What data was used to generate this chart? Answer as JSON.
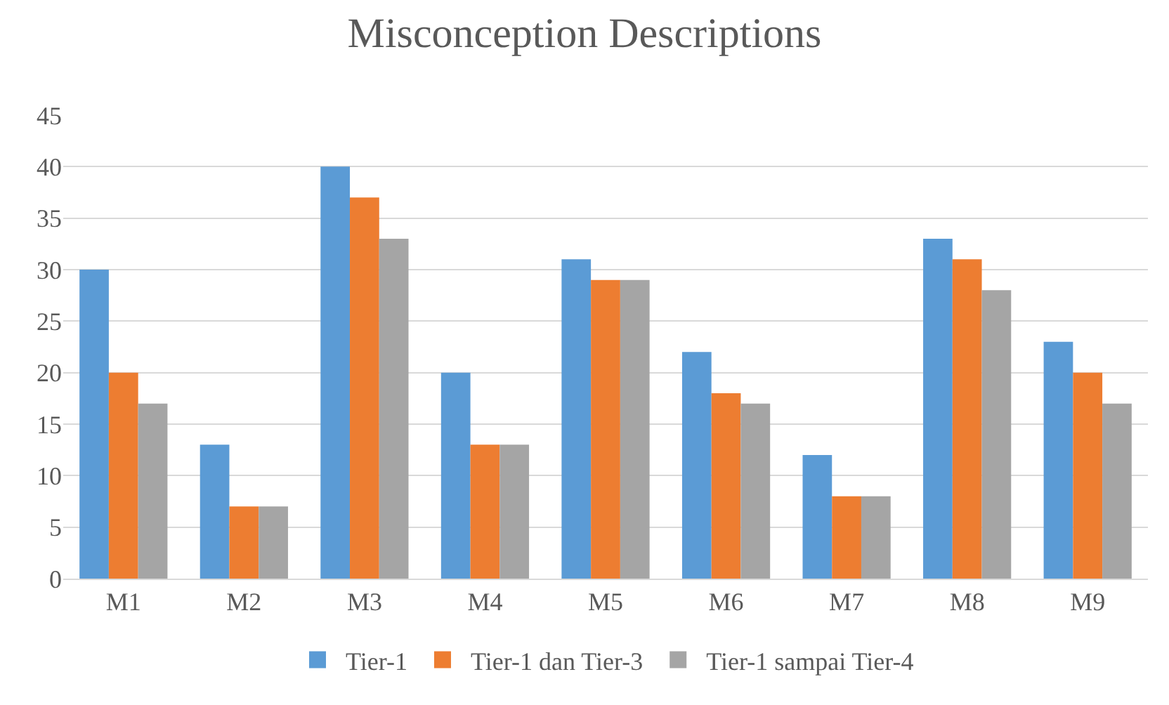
{
  "chart_data": {
    "type": "bar",
    "title": "Misconception Descriptions",
    "categories": [
      "M1",
      "M2",
      "M3",
      "M4",
      "M5",
      "M6",
      "M7",
      "M8",
      "M9"
    ],
    "series": [
      {
        "name": "Tier-1",
        "color": "#5b9bd5",
        "values": [
          30,
          13,
          40,
          20,
          31,
          22,
          12,
          33,
          23
        ]
      },
      {
        "name": "Tier-1 dan Tier-3",
        "color": "#ed7d31",
        "values": [
          20,
          7,
          37,
          13,
          29,
          18,
          8,
          31,
          20
        ]
      },
      {
        "name": "Tier-1 sampai Tier-4",
        "color": "#a5a5a5",
        "values": [
          17,
          7,
          33,
          13,
          29,
          17,
          8,
          28,
          17
        ]
      }
    ],
    "ylim": [
      0,
      45
    ],
    "yticks": [
      0,
      5,
      10,
      15,
      20,
      25,
      30,
      35,
      40,
      45
    ],
    "grid": "y",
    "legend": "bottom"
  }
}
